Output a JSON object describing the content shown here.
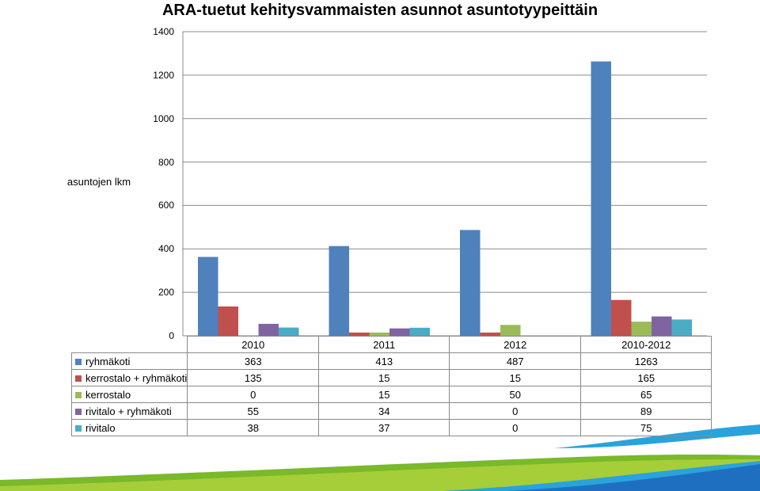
{
  "chart_data": {
    "type": "bar",
    "title": "ARA-tuetut kehitysvammaisten asunnot asuntotyypeittäin",
    "ylabel": "asuntojen lkm",
    "xlabel": "",
    "ylim": [
      0,
      1400
    ],
    "yticks": [
      "0",
      "200",
      "400",
      "600",
      "800",
      "1000",
      "1200",
      "1400"
    ],
    "grid": true,
    "legend": "data-table",
    "categories": [
      "2010",
      "2011",
      "2012",
      "2010-2012"
    ],
    "series": [
      {
        "name": "ryhmäkoti",
        "color": "#4F81BD",
        "values": [
          363,
          413,
          487,
          1263
        ]
      },
      {
        "name": "kerrostalo + ryhmäkoti",
        "color": "#C0504D",
        "values": [
          135,
          15,
          15,
          165
        ]
      },
      {
        "name": "kerrostalo",
        "color": "#9BBB59",
        "values": [
          0,
          15,
          50,
          65
        ]
      },
      {
        "name": "rivitalo + ryhmäkoti",
        "color": "#8064A2",
        "values": [
          55,
          34,
          0,
          89
        ]
      },
      {
        "name": "rivitalo",
        "color": "#4BACC6",
        "values": [
          38,
          37,
          0,
          75
        ]
      }
    ]
  },
  "decor": {
    "wave_colors": [
      "#7AB929",
      "#A6CE39",
      "#1F6FC0",
      "#29A3DC"
    ]
  }
}
